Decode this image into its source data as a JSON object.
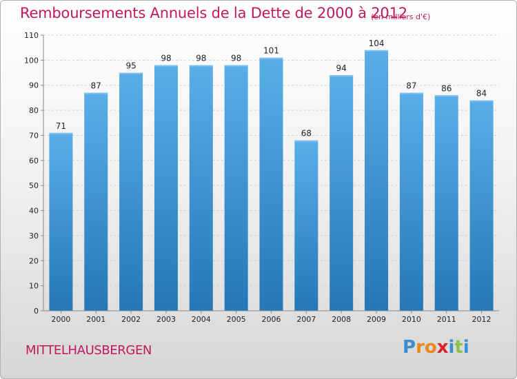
{
  "header": {
    "title": "Remboursements Annuels de la Dette de 2000 à 2012",
    "subtitle": "(en milliers d'€)"
  },
  "footer": {
    "commune": "MITTELHAUSBERGEN",
    "logo_letters": [
      "P",
      "r",
      "o",
      "x",
      "i",
      "t",
      "i"
    ]
  },
  "colors": {
    "accent": "#c2185b",
    "bar_top": "#5aaee8",
    "bar_bottom": "#2577b7",
    "logo": [
      "#3a8fd0",
      "#e8891c",
      "#e8891c",
      "#d8232a",
      "#3a8fd0",
      "#8bc34a",
      "#3a8fd0"
    ]
  },
  "chart_data": {
    "type": "bar",
    "title": "Remboursements Annuels de la Dette de 2000 à 2012",
    "subtitle": "(en milliers d'€)",
    "categories": [
      "2000",
      "2001",
      "2002",
      "2003",
      "2004",
      "2005",
      "2006",
      "2007",
      "2008",
      "2009",
      "2010",
      "2011",
      "2012"
    ],
    "values": [
      71,
      87,
      95,
      98,
      98,
      98,
      101,
      68,
      94,
      104,
      87,
      86,
      84
    ],
    "ylim": [
      0,
      110
    ],
    "yticks": [
      0,
      10,
      20,
      30,
      40,
      50,
      60,
      70,
      80,
      90,
      100,
      110
    ],
    "grid": true,
    "xlabel": "",
    "ylabel": ""
  }
}
